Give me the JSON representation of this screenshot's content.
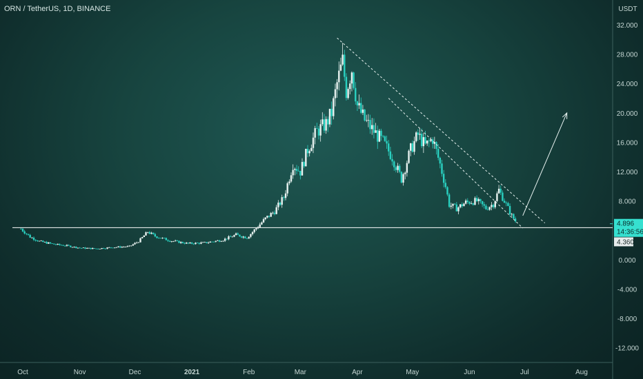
{
  "chart_data": {
    "type": "candlestick",
    "title": "ORN / TetherUS, 1D, BINANCE",
    "y_unit": "USDT",
    "ylim": [
      -14,
      33.5
    ],
    "y_ticks": [
      "32.000",
      "28.000",
      "24.000",
      "20.000",
      "16.000",
      "12.000",
      "8.000",
      "4.000",
      "0.000",
      "-4.000",
      "-8.000",
      "-12.000"
    ],
    "y_tick_values": [
      32,
      28,
      24,
      20,
      16,
      12,
      8,
      4,
      0,
      -4,
      -8,
      -12
    ],
    "x_ticks": [
      {
        "label": "Oct",
        "date": "2020-10-01"
      },
      {
        "label": "Nov",
        "date": "2020-11-01"
      },
      {
        "label": "Dec",
        "date": "2020-12-01"
      },
      {
        "label": "2021",
        "date": "2021-01-01",
        "bold": true
      },
      {
        "label": "Feb",
        "date": "2021-02-01"
      },
      {
        "label": "Mar",
        "date": "2021-03-01"
      },
      {
        "label": "Apr",
        "date": "2021-04-01"
      },
      {
        "label": "May",
        "date": "2021-05-01"
      },
      {
        "label": "Jun",
        "date": "2021-06-01"
      },
      {
        "label": "Jul",
        "date": "2021-07-01"
      },
      {
        "label": "Aug",
        "date": "2021-08-01"
      }
    ],
    "series": [
      {
        "points": [
          [
            "2020-09-30",
            4.2
          ],
          [
            "2020-10-05",
            3.1
          ],
          [
            "2020-10-10",
            2.5
          ],
          [
            "2020-10-18",
            2.1
          ],
          [
            "2020-10-25",
            1.9
          ],
          [
            "2020-11-01",
            1.6
          ],
          [
            "2020-11-10",
            1.5
          ],
          [
            "2020-11-20",
            1.7
          ],
          [
            "2020-11-28",
            1.8
          ],
          [
            "2020-12-03",
            2.5
          ],
          [
            "2020-12-08",
            3.8
          ],
          [
            "2020-12-12",
            3.2
          ],
          [
            "2020-12-20",
            2.6
          ],
          [
            "2020-12-30",
            2.2
          ],
          [
            "2021-01-08",
            2.3
          ],
          [
            "2021-01-18",
            2.7
          ],
          [
            "2021-01-25",
            3.4
          ],
          [
            "2021-01-31",
            3.0
          ],
          [
            "2021-02-05",
            4.3
          ],
          [
            "2021-02-10",
            5.6
          ],
          [
            "2021-02-15",
            6.6
          ],
          [
            "2021-02-20",
            8.5
          ],
          [
            "2021-02-25",
            13.0
          ],
          [
            "2021-03-01",
            12.0
          ],
          [
            "2021-03-05",
            15.0
          ],
          [
            "2021-03-10",
            17.5
          ],
          [
            "2021-03-15",
            18.5
          ],
          [
            "2021-03-18",
            20.0
          ],
          [
            "2021-03-21",
            24.0
          ],
          [
            "2021-03-24",
            27.0
          ],
          [
            "2021-03-26",
            23.0
          ],
          [
            "2021-03-29",
            26.0
          ],
          [
            "2021-04-01",
            21.0
          ],
          [
            "2021-04-05",
            19.0
          ],
          [
            "2021-04-10",
            17.5
          ],
          [
            "2021-04-15",
            16.0
          ],
          [
            "2021-04-20",
            14.0
          ],
          [
            "2021-04-25",
            11.0
          ],
          [
            "2021-04-30",
            15.0
          ],
          [
            "2021-05-04",
            17.0
          ],
          [
            "2021-05-08",
            15.5
          ],
          [
            "2021-05-12",
            16.5
          ],
          [
            "2021-05-16",
            13.0
          ],
          [
            "2021-05-19",
            10.0
          ],
          [
            "2021-05-21",
            7.5
          ],
          [
            "2021-05-25",
            7.0
          ],
          [
            "2021-05-30",
            7.8
          ],
          [
            "2021-06-05",
            8.0
          ],
          [
            "2021-06-10",
            7.0
          ],
          [
            "2021-06-14",
            7.6
          ],
          [
            "2021-06-17",
            9.5
          ],
          [
            "2021-06-21",
            7.5
          ],
          [
            "2021-06-24",
            6.0
          ],
          [
            "2021-06-27",
            4.9
          ]
        ]
      }
    ],
    "horizontal_level": 4.36,
    "price_tags": [
      {
        "value": "4.896",
        "time": "14:36:56",
        "level": 4.896
      },
      {
        "value": "4.360",
        "level": 4.36
      }
    ],
    "trendlines": [
      {
        "from": [
          "2021-03-21",
          30.2
        ],
        "to": [
          "2021-07-12",
          5.0
        ],
        "style": "dashed"
      },
      {
        "from": [
          "2021-04-18",
          22.0
        ],
        "to": [
          "2021-06-30",
          4.3
        ],
        "style": "dashed"
      }
    ],
    "arrow": {
      "from": [
        "2021-06-30",
        6.0
      ],
      "to": [
        "2021-07-24",
        20.0
      ]
    },
    "grid": false
  },
  "colors": {
    "up": "#e8f2f0",
    "down": "#2ad1c1",
    "level": "#ffffff",
    "tag_bg": "#36e0d0",
    "tag_alt_bg": "#e6ecec"
  }
}
